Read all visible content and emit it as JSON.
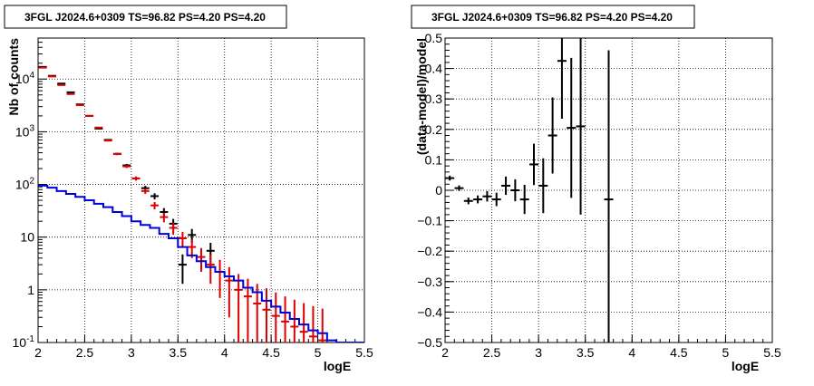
{
  "chart_data": [
    {
      "type": "step",
      "title": "3FGL J2024.6+0309 TS=96.82 PS=4.20 PS=4.20",
      "xlabel": "logE",
      "ylabel": "Nb of counts",
      "xlim": [
        2,
        5.5
      ],
      "ylim": [
        0.1,
        60000
      ],
      "yscale": "log",
      "grid": true,
      "xticks": [
        "2",
        "2.5",
        "3",
        "3.5",
        "4",
        "4.5",
        "5",
        "5.5"
      ],
      "yticks": [
        {
          "v": 0.1,
          "label": "10",
          "sup": "-1"
        },
        {
          "v": 1,
          "label": "1",
          "sup": ""
        },
        {
          "v": 10,
          "label": "10",
          "sup": ""
        },
        {
          "v": 100,
          "label": "10",
          "sup": "2"
        },
        {
          "v": 1000,
          "label": "10",
          "sup": "3"
        },
        {
          "v": 10000,
          "label": "10",
          "sup": "4"
        }
      ],
      "series": [
        {
          "kind": "points",
          "color": "#000000",
          "x": [
            2.05,
            2.15,
            2.25,
            2.35,
            2.45,
            2.55,
            2.65,
            2.75,
            2.85,
            2.95,
            3.05,
            3.15,
            3.25,
            3.35,
            3.45,
            3.55,
            3.65,
            3.85
          ],
          "y": [
            17000,
            11500,
            8200,
            5600,
            3300,
            2000,
            1150,
            700,
            380,
            230,
            130,
            85,
            60,
            30,
            18,
            3,
            11,
            5.5
          ],
          "err": [
            130,
            107,
            90,
            75,
            57,
            45,
            34,
            26,
            19,
            15,
            11,
            9,
            8,
            5.5,
            4.2,
            1.7,
            3.3,
            2.3
          ]
        },
        {
          "kind": "points",
          "color": "#dd0000",
          "x": [
            2.05,
            2.15,
            2.25,
            2.35,
            2.45,
            2.55,
            2.65,
            2.75,
            2.85,
            2.95,
            3.05,
            3.15,
            3.25,
            3.35,
            3.45,
            3.55,
            3.65,
            3.75,
            3.85,
            3.95,
            4.05,
            4.15,
            4.25,
            4.35,
            4.45,
            4.55,
            4.65,
            4.75,
            4.85,
            4.95,
            5.05
          ],
          "y": [
            16500,
            11200,
            7700,
            5200,
            3200,
            2000,
            1200,
            680,
            380,
            220,
            130,
            75,
            40,
            24,
            15,
            9.5,
            6.5,
            4.2,
            3.0,
            2.2,
            1.5,
            1.0,
            0.75,
            0.55,
            0.42,
            0.32,
            0.25,
            0.2,
            0.16,
            0.13,
            0.11
          ],
          "err": [
            128,
            106,
            88,
            72,
            57,
            45,
            35,
            26,
            19,
            15,
            11,
            8.7,
            6.3,
            4.9,
            3.9,
            3.1,
            2.5,
            2.0,
            1.7,
            1.5,
            1.2,
            1.0,
            0.87,
            0.74,
            0.65,
            0.57,
            0.5,
            0.45,
            0.4,
            0.36,
            0.33
          ]
        },
        {
          "kind": "step",
          "color": "#0000dd",
          "edges": [
            2.0,
            2.1,
            2.2,
            2.3,
            2.4,
            2.5,
            2.6,
            2.7,
            2.8,
            2.9,
            3.0,
            3.1,
            3.2,
            3.3,
            3.4,
            3.5,
            3.6,
            3.7,
            3.8,
            3.9,
            4.0,
            4.1,
            4.2,
            4.3,
            4.4,
            4.5,
            4.6,
            4.7,
            4.8,
            4.9,
            5.0,
            5.1,
            5.2,
            5.3,
            5.4,
            5.5
          ],
          "values": [
            95,
            87,
            75,
            66,
            58,
            50,
            43,
            37,
            30,
            25,
            20,
            17,
            15,
            11.5,
            9.5,
            6.5,
            4.5,
            3.5,
            2.7,
            2.2,
            1.8,
            1.5,
            1.1,
            0.9,
            0.62,
            0.48,
            0.37,
            0.28,
            0.22,
            0.17,
            0.15,
            0.11,
            0.1,
            0.1,
            0.1
          ]
        }
      ]
    },
    {
      "type": "scatter",
      "title": "3FGL J2024.6+0309 TS=96.82 PS=4.20 PS=4.20",
      "xlabel": "logE",
      "ylabel": "(data-model)/model",
      "xlim": [
        2,
        5.5
      ],
      "ylim": [
        -0.5,
        0.5
      ],
      "grid": true,
      "xticks": [
        "2",
        "2.5",
        "3",
        "3.5",
        "4",
        "4.5",
        "5",
        "5.5"
      ],
      "yticks": [
        "−0.5",
        "−0.4",
        "−0.3",
        "−0.2",
        "−0.1",
        "0",
        "0.1",
        "0.2",
        "0.3",
        "0.4",
        "0.5"
      ],
      "series": [
        {
          "kind": "points",
          "color": "#000000",
          "x": [
            2.05,
            2.15,
            2.25,
            2.35,
            2.45,
            2.55,
            2.65,
            2.75,
            2.85,
            2.95,
            3.05,
            3.15,
            3.25,
            3.35,
            3.45,
            3.75
          ],
          "y": [
            0.04,
            0.007,
            -0.035,
            -0.03,
            -0.02,
            -0.03,
            0.015,
            0.0,
            -0.03,
            0.085,
            0.015,
            0.18,
            0.425,
            0.205,
            0.21,
            -0.03
          ],
          "err": [
            0.008,
            0.009,
            0.011,
            0.013,
            0.017,
            0.022,
            0.03,
            0.036,
            0.048,
            0.068,
            0.09,
            0.125,
            0.19,
            0.23,
            0.29,
            0.49
          ]
        }
      ]
    }
  ]
}
